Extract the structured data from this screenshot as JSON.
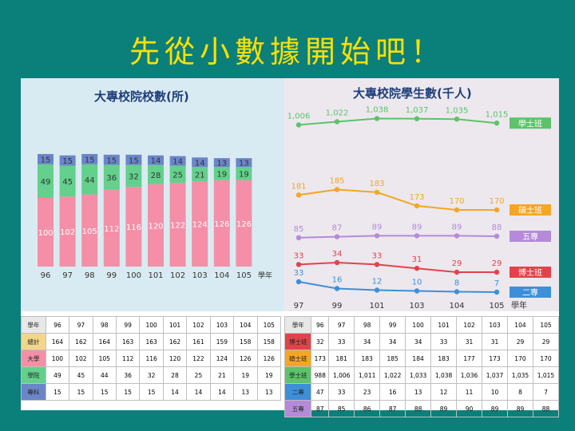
{
  "slide_title": "先從小數據開始吧！",
  "left_chart_title": "大專校院校數(所)",
  "right_chart_title": "大專校院學生數(千人)",
  "colors": {
    "background": "#0b7f7a",
    "title": "#ffe000",
    "univ": "#f48fa7",
    "college": "#63d08c",
    "junior": "#6b86c8",
    "bachelor": "#5cc36a",
    "master": "#f5a623",
    "phd": "#e0444a",
    "five_year": "#b58ad9",
    "two_year": "#3d8fd8"
  },
  "chart_data": [
    {
      "type": "bar",
      "title": "大專校院校數(所)",
      "xlabel": "學年",
      "categories": [
        "96",
        "97",
        "98",
        "99",
        "100",
        "101",
        "102",
        "103",
        "104",
        "105"
      ],
      "series": [
        {
          "name": "大學",
          "values": [
            100,
            102,
            105,
            112,
            116,
            120,
            122,
            124,
            126,
            126
          ]
        },
        {
          "name": "學院",
          "values": [
            49,
            45,
            44,
            36,
            32,
            28,
            25,
            21,
            19,
            19
          ]
        },
        {
          "name": "專科",
          "values": [
            15,
            15,
            15,
            15,
            15,
            14,
            14,
            14,
            13,
            13
          ]
        }
      ]
    },
    {
      "type": "line",
      "title": "大專校院學生數(千人)",
      "xlabel": "學年",
      "categories": [
        "97",
        "99",
        "101",
        "103",
        "104",
        "105"
      ],
      "series": [
        {
          "name": "學士班",
          "values": [
            1006,
            1022,
            1038,
            1037,
            1035,
            1015
          ]
        },
        {
          "name": "碩士班",
          "values": [
            181,
            185,
            183,
            173,
            170,
            170
          ]
        },
        {
          "name": "五專",
          "values": [
            85,
            87,
            89,
            89,
            89,
            88
          ]
        },
        {
          "name": "博士班",
          "values": [
            33,
            34,
            33,
            31,
            29,
            29
          ]
        },
        {
          "name": "二專",
          "values": [
            33,
            16,
            12,
            10,
            8,
            7
          ]
        }
      ]
    }
  ],
  "left_table": {
    "header": [
      "學年",
      "96",
      "97",
      "98",
      "99",
      "100",
      "101",
      "102",
      "103",
      "104",
      "105"
    ],
    "rows": [
      {
        "label": "總計",
        "values": [
          "164",
          "162",
          "164",
          "163",
          "163",
          "162",
          "161",
          "159",
          "158",
          "158"
        ]
      },
      {
        "label": "大學",
        "values": [
          "100",
          "102",
          "105",
          "112",
          "116",
          "120",
          "122",
          "124",
          "126",
          "126"
        ]
      },
      {
        "label": "學院",
        "values": [
          "49",
          "45",
          "44",
          "36",
          "32",
          "28",
          "25",
          "21",
          "19",
          "19"
        ]
      },
      {
        "label": "專科",
        "values": [
          "15",
          "15",
          "15",
          "15",
          "15",
          "14",
          "14",
          "14",
          "13",
          "13"
        ]
      }
    ]
  },
  "right_table": {
    "header": [
      "學年",
      "96",
      "97",
      "98",
      "99",
      "100",
      "101",
      "102",
      "103",
      "104",
      "105"
    ],
    "rows": [
      {
        "label": "博士班",
        "values": [
          "32",
          "33",
          "34",
          "34",
          "34",
          "33",
          "31",
          "31",
          "29",
          "29"
        ]
      },
      {
        "label": "碩士班",
        "values": [
          "173",
          "181",
          "183",
          "185",
          "184",
          "183",
          "177",
          "173",
          "170",
          "170"
        ]
      },
      {
        "label": "學士班",
        "values": [
          "988",
          "1,006",
          "1,011",
          "1,022",
          "1,033",
          "1,038",
          "1,036",
          "1,037",
          "1,035",
          "1,015"
        ]
      },
      {
        "label": "二專",
        "values": [
          "47",
          "33",
          "23",
          "16",
          "13",
          "12",
          "11",
          "10",
          "8",
          "7"
        ]
      },
      {
        "label": "五專",
        "values": [
          "87",
          "85",
          "86",
          "87",
          "88",
          "89",
          "90",
          "89",
          "89",
          "88"
        ]
      }
    ]
  }
}
